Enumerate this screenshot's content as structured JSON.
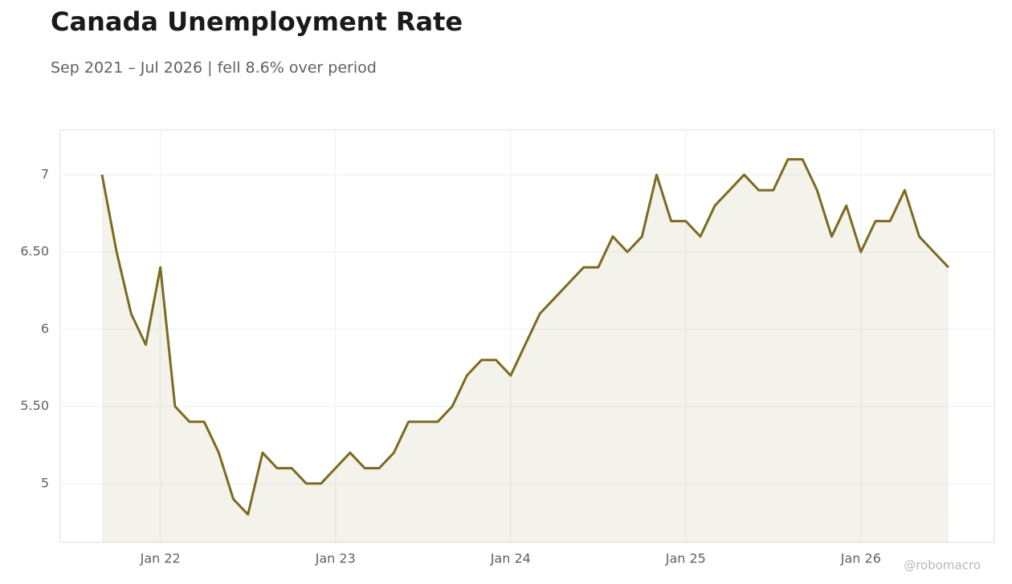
{
  "chart_data": {
    "type": "line",
    "title": "Canada Unemployment Rate",
    "subtitle": "Sep 2021 – Jul 2026 | fell 8.6% over period",
    "source": "@robomacro",
    "categories": [
      null,
      null,
      null,
      null,
      "Jan 22",
      null,
      null,
      null,
      null,
      null,
      null,
      null,
      null,
      null,
      null,
      null,
      "Jan 23",
      null,
      null,
      null,
      null,
      null,
      null,
      null,
      null,
      null,
      null,
      null,
      "Jan 24",
      null,
      null,
      null,
      null,
      null,
      null,
      null,
      null,
      null,
      null,
      null,
      "Jan 25",
      null,
      null,
      null,
      null,
      null,
      null,
      null,
      null,
      null,
      null,
      null,
      "Jan 26",
      null,
      null,
      null,
      null,
      null,
      null
    ],
    "values": [
      7.0,
      6.5,
      6.1,
      5.9,
      6.4,
      5.5,
      5.4,
      5.4,
      5.2,
      4.9,
      4.8,
      5.2,
      5.1,
      5.1,
      5.0,
      5.0,
      5.1,
      5.2,
      5.1,
      5.1,
      5.2,
      5.4,
      5.4,
      5.4,
      5.5,
      5.7,
      5.8,
      5.8,
      5.7,
      5.9,
      6.1,
      6.2,
      6.3,
      6.4,
      6.4,
      6.6,
      6.5,
      6.6,
      7.0,
      6.7,
      6.7,
      6.6,
      6.8,
      6.9,
      7.0,
      6.9,
      6.9,
      7.1,
      7.1,
      6.9,
      6.6,
      6.8,
      6.5,
      6.7,
      6.7,
      6.9,
      6.6,
      6.5,
      6.4
    ],
    "color": "#7d6a20",
    "ylim": [
      4.62,
      7.29
    ],
    "yticks": [
      5,
      {
        "value": 5.5,
        "label": "5.50"
      },
      6,
      {
        "value": 6.5,
        "label": "6.50"
      },
      7
    ],
    "grid": true
  }
}
